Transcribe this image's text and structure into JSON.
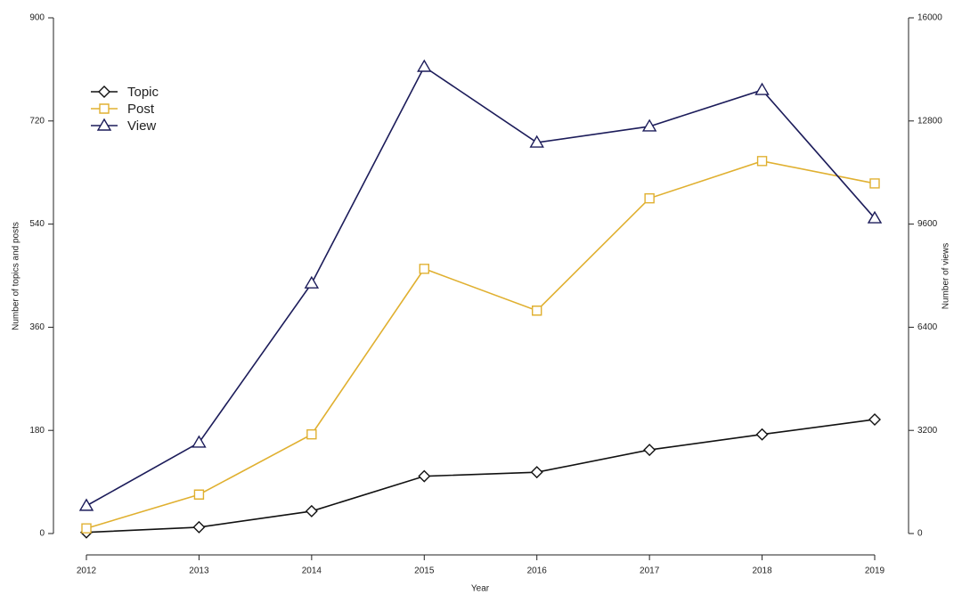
{
  "chart_data": {
    "type": "line",
    "categories": [
      "2012",
      "2013",
      "2014",
      "2015",
      "2016",
      "2017",
      "2018",
      "2019"
    ],
    "xlabel": "Year",
    "ylabel": "Number of topics and posts",
    "y2label": "Number of views",
    "ylim": [
      0,
      900
    ],
    "yticks": [
      0,
      180,
      360,
      540,
      720,
      900
    ],
    "y2lim": [
      0,
      16000
    ],
    "y2ticks": [
      0,
      3200,
      6400,
      9600,
      12800,
      16000
    ],
    "legend": "upper-left",
    "series": [
      {
        "name": "Topic",
        "color": "#111111",
        "marker": "diamond",
        "values": [
          2,
          11,
          39,
          100,
          107,
          146,
          173,
          199
        ]
      },
      {
        "name": "Post",
        "color": "#e0b030",
        "marker": "square",
        "values": [
          9,
          68,
          173,
          462,
          389,
          585,
          650,
          611
        ]
      },
      {
        "name": "View",
        "color": "#1c1c5a",
        "marker": "triangle",
        "axis": "y2",
        "values": [
          860,
          2820,
          7760,
          14480,
          12130,
          12630,
          13760,
          9780
        ]
      }
    ]
  }
}
